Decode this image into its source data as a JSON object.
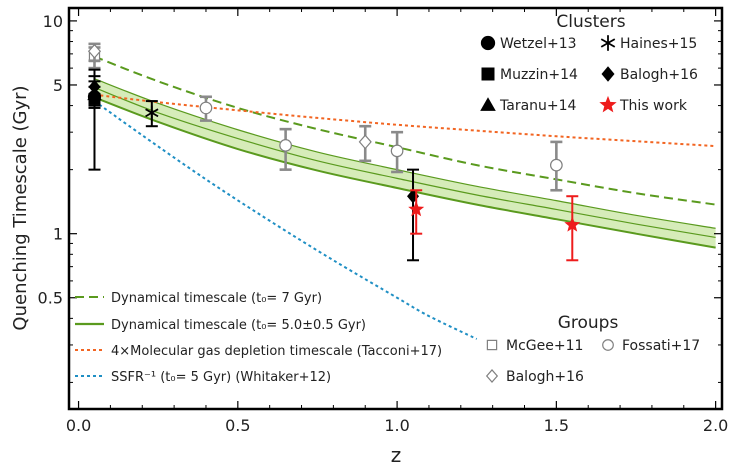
{
  "chart_data": {
    "type": "scatter",
    "xlabel": "z",
    "ylabel": "Quenching Timescale (Gyr)",
    "xlim": [
      -0.03,
      2.02
    ],
    "ylim": [
      0.15,
      11.5
    ],
    "yscale": "log",
    "x_ticks": [
      0.0,
      0.5,
      1.0,
      1.5,
      2.0
    ],
    "x_tick_labels": [
      "0.0",
      "0.5",
      "1.0",
      "1.5",
      "2.0"
    ],
    "y_ticks": [
      0.5,
      1,
      5,
      10
    ],
    "y_tick_labels": [
      "0.5",
      "1",
      "5",
      "10"
    ],
    "grid": false,
    "legend_titles": {
      "clusters": "Clusters",
      "groups": "Groups"
    },
    "curves": [
      {
        "name": "Dynamical timescale (t₀= 7 Gyr)",
        "style": "dashed",
        "color": "#5a9a1e",
        "x": [
          0.05,
          0.25,
          0.5,
          0.75,
          1.0,
          1.25,
          1.5,
          1.75,
          2.0
        ],
        "y": [
          6.8,
          5.2,
          3.9,
          3.1,
          2.55,
          2.1,
          1.8,
          1.55,
          1.37
        ]
      },
      {
        "name": "Dynamical timescale (t₀= 5.0±0.5 Gyr)",
        "style": "solid",
        "color": "#5a9a1e",
        "x": [
          0.05,
          0.25,
          0.5,
          0.75,
          1.0,
          1.25,
          1.5,
          1.75,
          2.0
        ],
        "y": [
          4.86,
          3.7,
          2.8,
          2.2,
          1.82,
          1.52,
          1.3,
          1.11,
          0.96
        ],
        "band_lower": [
          4.37,
          3.35,
          2.5,
          1.98,
          1.64,
          1.37,
          1.17,
          1.0,
          0.86
        ],
        "band_upper": [
          5.35,
          4.1,
          3.08,
          2.42,
          2.0,
          1.67,
          1.43,
          1.22,
          1.06
        ]
      },
      {
        "name": "4×Molecular gas depletion timescale (Tacconi+17)",
        "style": "dotted",
        "color": "#f26522",
        "x": [
          0.05,
          0.25,
          0.5,
          0.75,
          1.0,
          1.25,
          1.5,
          1.75,
          2.0
        ],
        "y": [
          4.5,
          4.15,
          3.8,
          3.5,
          3.25,
          3.05,
          2.87,
          2.72,
          2.58
        ]
      },
      {
        "name": "SSFR⁻¹ (t₀= 5 Gyr) (Whitaker+12)",
        "style": "dotted",
        "color": "#1f8fc4",
        "x": [
          0.05,
          0.2,
          0.4,
          0.6,
          0.8,
          1.0,
          1.1,
          1.25
        ],
        "y": [
          4.2,
          2.9,
          1.8,
          1.15,
          0.75,
          0.5,
          0.41,
          0.32
        ]
      }
    ],
    "series": [
      {
        "name": "Wetzel+13",
        "group": "Clusters",
        "marker": "circle",
        "color": "#000000",
        "points": [
          {
            "x": 0.05,
            "y": 4.4,
            "ylo": 2.0,
            "yhi": 5.9
          }
        ]
      },
      {
        "name": "Muzzin+14",
        "group": "Clusters",
        "marker": "square",
        "color": "#000000",
        "points": [
          {
            "x": 0.05,
            "y": 4.3,
            "ylo": 3.9,
            "yhi": 4.9
          }
        ]
      },
      {
        "name": "Taranu+14",
        "group": "Clusters",
        "marker": "triangle",
        "color": "#000000",
        "points": [
          {
            "x": 0.05,
            "y": 4.5,
            "ylo": 4.0,
            "yhi": 5.2
          }
        ]
      },
      {
        "name": "Haines+15",
        "group": "Clusters",
        "marker": "asterisk",
        "color": "#000000",
        "points": [
          {
            "x": 0.23,
            "y": 3.7,
            "ylo": 3.2,
            "yhi": 4.2
          }
        ]
      },
      {
        "name": "Balogh+16",
        "group": "Clusters",
        "marker": "diamond",
        "color": "#000000",
        "points": [
          {
            "x": 0.05,
            "y": 4.9,
            "ylo": 4.4,
            "yhi": 5.5
          },
          {
            "x": 1.05,
            "y": 1.5,
            "ylo": 0.75,
            "yhi": 2.0
          }
        ]
      },
      {
        "name": "This work",
        "group": "Clusters",
        "marker": "star",
        "color": "#ee1c1c",
        "points": [
          {
            "x": 1.06,
            "y": 1.3,
            "ylo": 1.0,
            "yhi": 1.6
          },
          {
            "x": 1.55,
            "y": 1.1,
            "ylo": 0.75,
            "yhi": 1.5
          }
        ]
      },
      {
        "name": "McGee+11",
        "group": "Groups",
        "marker": "open-square",
        "color": "#808080",
        "points": [
          {
            "x": 0.05,
            "y": 6.8,
            "ylo": 6.0,
            "yhi": 7.5
          }
        ]
      },
      {
        "name": "Fossati+17",
        "group": "Groups",
        "marker": "open-circle",
        "color": "#808080",
        "points": [
          {
            "x": 0.4,
            "y": 3.9,
            "ylo": 3.4,
            "yhi": 4.4
          },
          {
            "x": 0.65,
            "y": 2.6,
            "ylo": 2.0,
            "yhi": 3.1
          },
          {
            "x": 1.0,
            "y": 2.45,
            "ylo": 1.95,
            "yhi": 3.0
          },
          {
            "x": 1.5,
            "y": 2.1,
            "ylo": 1.6,
            "yhi": 2.7
          }
        ]
      },
      {
        "name": "Balogh+16",
        "group": "Groups",
        "marker": "open-diamond",
        "color": "#808080",
        "points": [
          {
            "x": 0.05,
            "y": 7.2,
            "ylo": 6.5,
            "yhi": 7.8
          },
          {
            "x": 0.9,
            "y": 2.7,
            "ylo": 2.2,
            "yhi": 3.2
          }
        ]
      }
    ]
  }
}
